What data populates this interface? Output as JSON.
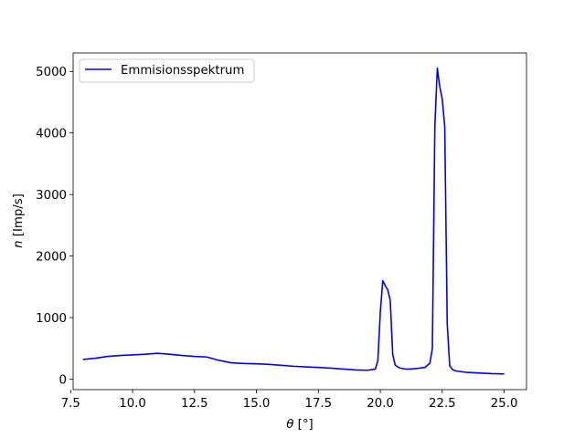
{
  "chart_data": {
    "type": "line",
    "xlabel_symbol": "θ",
    "xlabel_unit": " [°]",
    "ylabel_symbol": "n",
    "ylabel_unit": " [Imp/s]",
    "xlim": [
      7.6,
      25.9
    ],
    "ylim": [
      -170,
      5300
    ],
    "xticks": [
      7.5,
      10.0,
      12.5,
      15.0,
      17.5,
      20.0,
      22.5,
      25.0
    ],
    "xtick_labels": [
      "7.5",
      "10.0",
      "12.5",
      "15.0",
      "17.5",
      "20.0",
      "22.5",
      "25.0"
    ],
    "yticks": [
      0,
      1000,
      2000,
      3000,
      4000,
      5000
    ],
    "ytick_labels": [
      "0",
      "1000",
      "2000",
      "3000",
      "4000",
      "5000"
    ],
    "grid": false,
    "legend_position": "top-left",
    "series": [
      {
        "name": "Emmisionsspektrum",
        "color": "#0000ff",
        "x": [
          8.0,
          8.5,
          9.0,
          9.5,
          10.0,
          10.5,
          11.0,
          11.5,
          12.0,
          12.5,
          13.0,
          13.5,
          14.0,
          14.5,
          15.0,
          15.5,
          16.0,
          16.5,
          17.0,
          17.5,
          18.0,
          18.5,
          19.0,
          19.5,
          19.8,
          19.9,
          20.0,
          20.1,
          20.2,
          20.3,
          20.4,
          20.5,
          20.6,
          20.7,
          20.8,
          21.0,
          21.2,
          21.5,
          21.8,
          22.0,
          22.1,
          22.2,
          22.3,
          22.4,
          22.5,
          22.6,
          22.7,
          22.8,
          22.9,
          23.0,
          23.1,
          23.3,
          23.5,
          24.0,
          24.5,
          25.0
        ],
        "y": [
          320,
          340,
          370,
          385,
          395,
          405,
          420,
          405,
          385,
          370,
          360,
          305,
          265,
          255,
          250,
          240,
          225,
          210,
          200,
          190,
          180,
          165,
          150,
          145,
          165,
          300,
          1100,
          1600,
          1520,
          1450,
          1280,
          400,
          230,
          200,
          180,
          165,
          165,
          175,
          190,
          260,
          500,
          4100,
          5050,
          4750,
          4550,
          4100,
          900,
          220,
          160,
          140,
          130,
          120,
          110,
          100,
          90,
          85
        ]
      }
    ]
  }
}
